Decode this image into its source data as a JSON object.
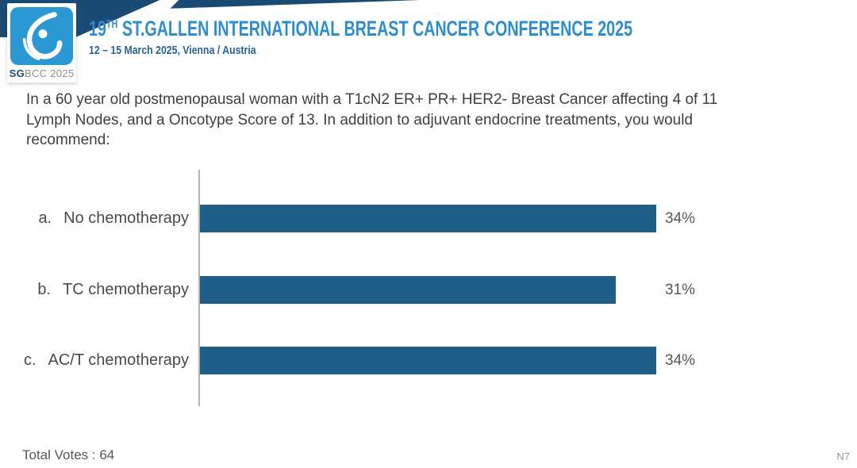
{
  "header": {
    "logo": {
      "icon": "sgbcc-breast-ribbon-icon",
      "caption_bold": "SG",
      "caption_rest": "BCC 2025"
    },
    "title_prefix": "19",
    "title_sup": "TH",
    "title_rest": " ST.GALLEN INTERNATIONAL BREAST CANCER CONFERENCE 2025",
    "subtitle": "12 – 15 March 2025, Vienna / Austria"
  },
  "question": {
    "lines": [
      "In a 60 year old postmenopausal woman with a T1cN2 ER+ PR+ HER2- Breast Cancer affecting 4 of 11",
      "Lymph Nodes, and a Oncotype Score of 13. In addition to adjuvant endocrine treatments, you would",
      "recommend:"
    ]
  },
  "chart_data": {
    "type": "bar",
    "orientation": "horizontal",
    "option_letters": [
      "a.",
      "b.",
      "c."
    ],
    "categories": [
      "No chemotherapy",
      "TC chemotherapy",
      "AC/T chemotherapy"
    ],
    "values": [
      34,
      31,
      34
    ],
    "value_suffix": "%",
    "xlim": [
      0,
      40
    ],
    "grid": false,
    "legend": false,
    "bar_color": "#1f5f87",
    "axis_color": "#b3b3b3"
  },
  "footer": {
    "total_votes": "Total Votes : 64",
    "slide_code": "N7"
  },
  "colors": {
    "banner_navy": "#1a4b74",
    "logo_blue": "#2b97d3",
    "title_blue": "#2e8ecb",
    "subtitle_blue": "#28658f",
    "question_text": "#3f3f3f",
    "label_text": "#4a4a4a"
  }
}
